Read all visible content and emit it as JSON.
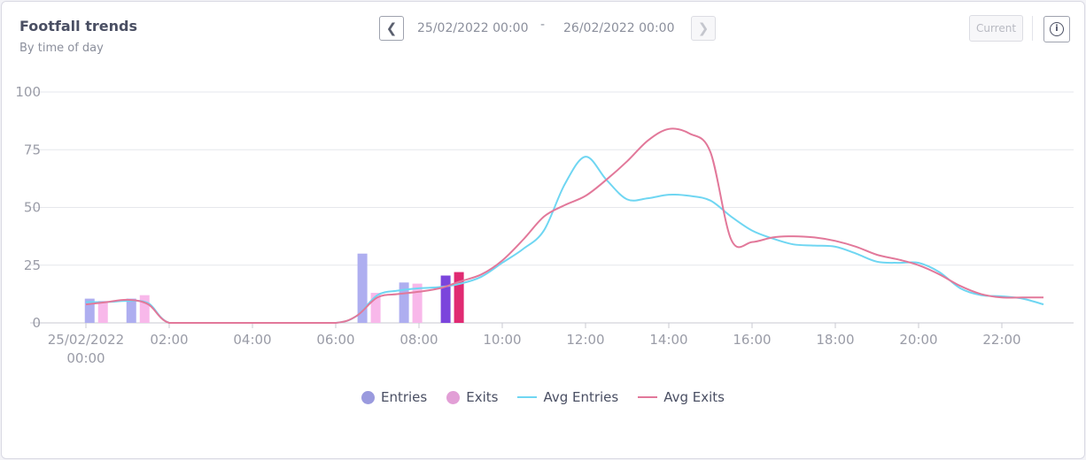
{
  "header": {
    "title": "Footfall trends",
    "subtitle": "By time of day",
    "date_from": "25/02/2022 00:00",
    "date_separator": "-",
    "date_to": "26/02/2022 00:00",
    "current_label": "Current",
    "prev_icon": "chevron-left-icon",
    "next_icon": "chevron-right-icon",
    "info_icon": "info-icon",
    "info_glyph": "i"
  },
  "legend": [
    {
      "label": "Entries",
      "kind": "dot",
      "color": "#9a9ade"
    },
    {
      "label": "Exits",
      "kind": "dot",
      "color": "#e29fd6"
    },
    {
      "label": "Avg Entries",
      "kind": "line",
      "color": "#6fd6f2"
    },
    {
      "label": "Avg Exits",
      "kind": "line",
      "color": "#e2789a"
    }
  ],
  "chart_data": {
    "type": "bar",
    "x_axis_type": "time",
    "xlim": [
      0,
      24
    ],
    "ylim": [
      0,
      100
    ],
    "yticks": [
      0,
      25,
      50,
      75,
      100
    ],
    "xtick_labels": [
      {
        "hour": 0,
        "label": "25/02/2022",
        "label2": "00:00"
      },
      {
        "hour": 2,
        "label": "02:00"
      },
      {
        "hour": 4,
        "label": "04:00"
      },
      {
        "hour": 6,
        "label": "06:00"
      },
      {
        "hour": 8,
        "label": "08:00"
      },
      {
        "hour": 10,
        "label": "10:00"
      },
      {
        "hour": 12,
        "label": "12:00"
      },
      {
        "hour": 14,
        "label": "14:00"
      },
      {
        "hour": 16,
        "label": "16:00"
      },
      {
        "hour": 18,
        "label": "18:00"
      },
      {
        "hour": 20,
        "label": "20:00"
      },
      {
        "hour": 22,
        "label": "22:00"
      }
    ],
    "grid": true,
    "legend_position": "bottom-center",
    "bars": [
      {
        "hour": 0.25,
        "entries": 10.5,
        "exits": 9.5
      },
      {
        "hour": 1.25,
        "entries": 10.5,
        "exits": 12
      },
      {
        "hour": 6.8,
        "entries": 30,
        "exits": 13
      },
      {
        "hour": 7.8,
        "entries": 17.5,
        "exits": 17,
        "highlight": false
      },
      {
        "hour": 8.8,
        "entries": 20.5,
        "exits": 22,
        "highlight": true
      }
    ],
    "bar_colors": {
      "entries": "#aeaef0",
      "exits": "#f8b8ea",
      "entries_current": "#7b45dc",
      "exits_current": "#e02a72"
    },
    "series": [
      {
        "name": "Avg Entries",
        "color": "#6fd6f2",
        "points": [
          [
            0,
            9
          ],
          [
            0.5,
            9
          ],
          [
            1,
            9.5
          ],
          [
            1.5,
            8.5
          ],
          [
            2,
            0
          ],
          [
            3,
            0
          ],
          [
            4,
            0
          ],
          [
            5,
            0
          ],
          [
            6,
            0
          ],
          [
            6.5,
            3
          ],
          [
            7,
            12
          ],
          [
            7.5,
            14
          ],
          [
            8,
            15
          ],
          [
            8.5,
            15.5
          ],
          [
            9,
            17
          ],
          [
            9.5,
            20
          ],
          [
            10,
            26
          ],
          [
            10.5,
            32
          ],
          [
            11,
            40
          ],
          [
            11.5,
            60
          ],
          [
            12,
            72
          ],
          [
            12.5,
            62
          ],
          [
            13,
            53.5
          ],
          [
            13.5,
            54
          ],
          [
            14,
            55.5
          ],
          [
            14.5,
            55
          ],
          [
            15,
            53
          ],
          [
            15.5,
            46
          ],
          [
            16,
            40
          ],
          [
            16.5,
            36.5
          ],
          [
            17,
            34
          ],
          [
            17.5,
            33.5
          ],
          [
            18,
            33
          ],
          [
            18.5,
            30
          ],
          [
            19,
            26.5
          ],
          [
            19.5,
            26
          ],
          [
            20,
            26
          ],
          [
            20.5,
            22
          ],
          [
            21,
            15
          ],
          [
            21.5,
            12
          ],
          [
            22,
            11.5
          ],
          [
            22.5,
            10.5
          ],
          [
            23,
            8
          ]
        ]
      },
      {
        "name": "Avg Exits",
        "color": "#e2789a",
        "points": [
          [
            0,
            8
          ],
          [
            0.5,
            9
          ],
          [
            1,
            10
          ],
          [
            1.5,
            8
          ],
          [
            2,
            0
          ],
          [
            3,
            0
          ],
          [
            4,
            0
          ],
          [
            5,
            0
          ],
          [
            6,
            0
          ],
          [
            6.5,
            3
          ],
          [
            7,
            11
          ],
          [
            7.5,
            12.5
          ],
          [
            8,
            13.5
          ],
          [
            8.5,
            15
          ],
          [
            9,
            18
          ],
          [
            9.5,
            21
          ],
          [
            10,
            27
          ],
          [
            10.5,
            36
          ],
          [
            11,
            46
          ],
          [
            11.5,
            51
          ],
          [
            12,
            55
          ],
          [
            12.5,
            62
          ],
          [
            13,
            70
          ],
          [
            13.5,
            79
          ],
          [
            14,
            84
          ],
          [
            14.5,
            82
          ],
          [
            15,
            74
          ],
          [
            15.5,
            36
          ],
          [
            16,
            35
          ],
          [
            16.5,
            37
          ],
          [
            17,
            37.5
          ],
          [
            17.5,
            37
          ],
          [
            18,
            35.5
          ],
          [
            18.5,
            33
          ],
          [
            19,
            29.5
          ],
          [
            19.5,
            27.5
          ],
          [
            20,
            25
          ],
          [
            20.5,
            21
          ],
          [
            21,
            16
          ],
          [
            21.5,
            12.5
          ],
          [
            22,
            11
          ],
          [
            22.5,
            11
          ],
          [
            23,
            11
          ]
        ]
      }
    ]
  }
}
